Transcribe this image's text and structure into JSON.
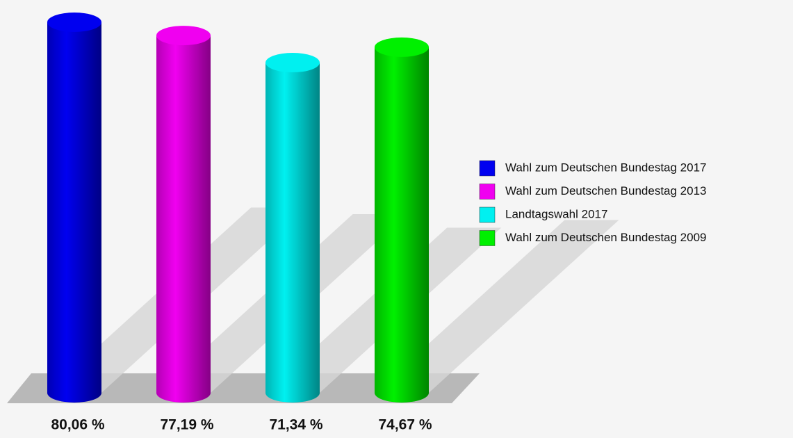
{
  "chart_data": {
    "type": "cylinder",
    "categories": [
      "Wahl zum Deutschen Bundestag 2017",
      "Wahl zum Deutschen Bundestag 2013",
      "Landtagswahl 2017",
      "Wahl zum Deutschen Bundestag 2009"
    ],
    "values": [
      80.06,
      77.19,
      71.34,
      74.67
    ],
    "value_labels": [
      "80,06 %",
      "77,19 %",
      "71,34 %",
      "74,67 %"
    ],
    "colors": [
      "#0000f0",
      "#f000f0",
      "#00f0f0",
      "#00f000"
    ],
    "legend": "right"
  }
}
